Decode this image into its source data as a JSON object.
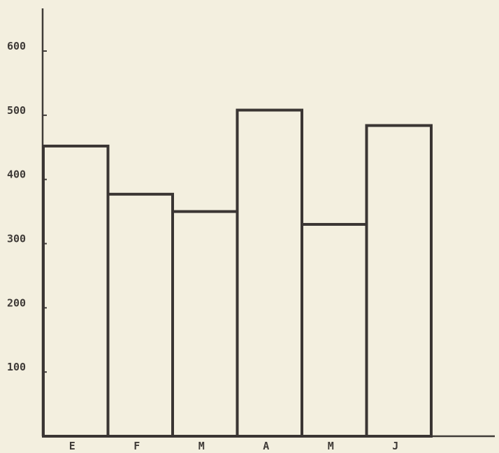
{
  "chart_data": {
    "type": "bar",
    "title": "",
    "xlabel": "",
    "ylabel": "",
    "categories": [
      "E",
      "F",
      "M",
      "A",
      "M",
      "J"
    ],
    "values": [
      452,
      377,
      350,
      508,
      330,
      484
    ],
    "ylim": [
      0,
      650
    ],
    "yticks": [
      100,
      200,
      300,
      400,
      500,
      600
    ],
    "ytick_labels": [
      "100",
      "200",
      "300",
      "400",
      "500",
      "600"
    ],
    "grid": false,
    "legend": "none",
    "style": "step outline",
    "colors": {
      "background": "#f3efdf",
      "ink": "#3a3533"
    }
  }
}
